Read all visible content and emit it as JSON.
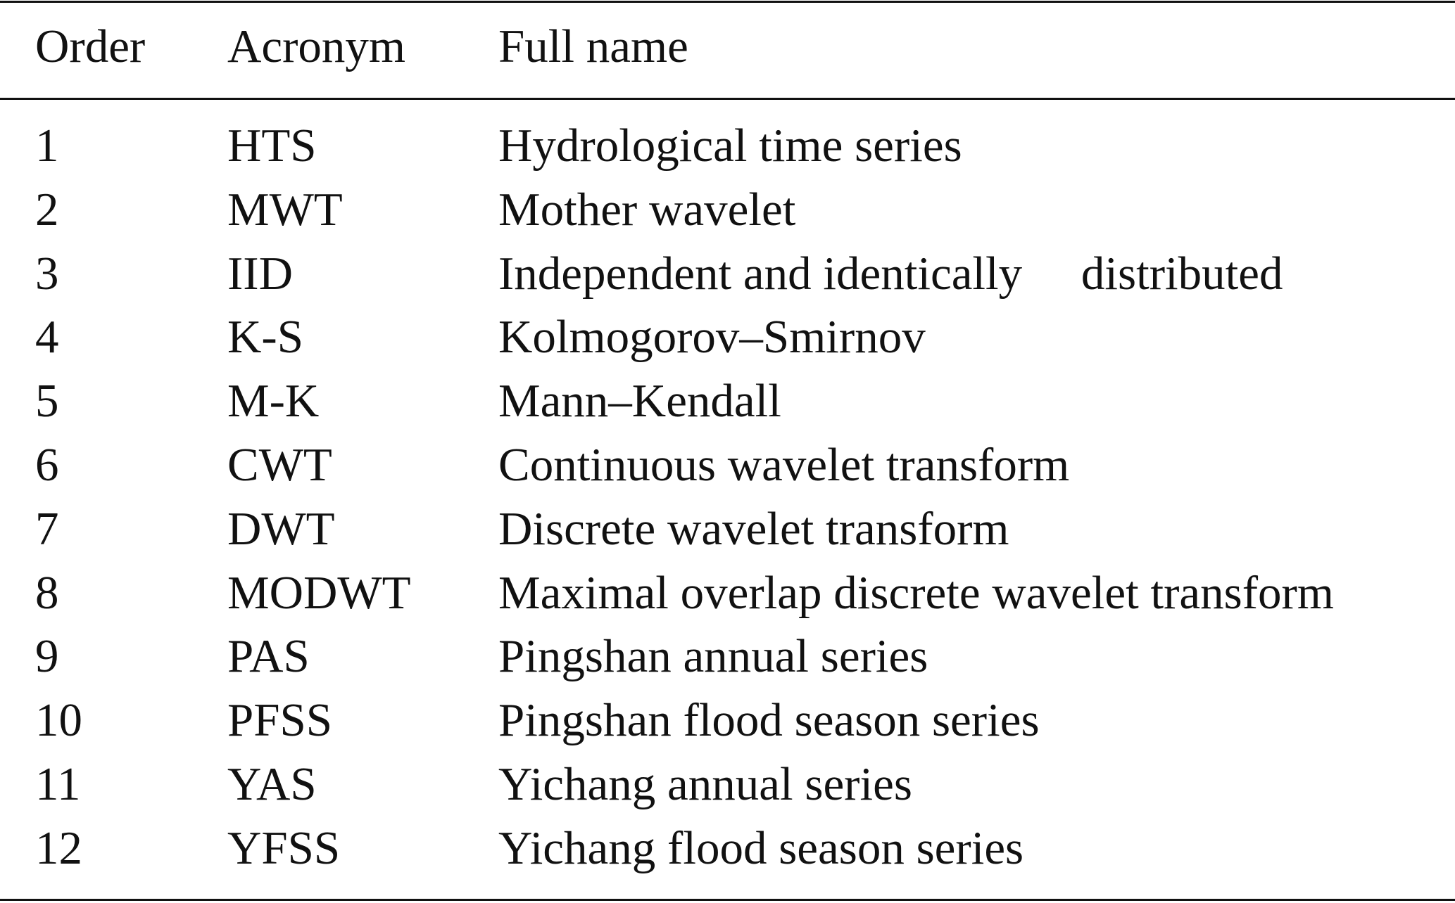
{
  "table": {
    "header": [
      "Order",
      "Acronym",
      "Full name"
    ],
    "rows": [
      [
        "1",
        "HTS",
        "Hydrological time series"
      ],
      [
        "2",
        "MWT",
        "Mother wavelet"
      ],
      [
        "3",
        "IID",
        "Independent and identically     distributed"
      ],
      [
        "4",
        "K-S",
        "Kolmogorov–Smirnov"
      ],
      [
        "5",
        "M-K",
        "Mann–Kendall"
      ],
      [
        "6",
        "CWT",
        "Continuous wavelet transform"
      ],
      [
        "7",
        "DWT",
        "Discrete wavelet transform"
      ],
      [
        "8",
        "MODWT",
        "Maximal overlap discrete wavelet transform"
      ],
      [
        "9",
        "PAS",
        "Pingshan annual series"
      ],
      [
        "10",
        "PFSS",
        "Pingshan flood season series"
      ],
      [
        "11",
        "YAS",
        "Yichang annual series"
      ],
      [
        "12",
        "YFSS",
        "Yichang flood season series"
      ]
    ]
  }
}
